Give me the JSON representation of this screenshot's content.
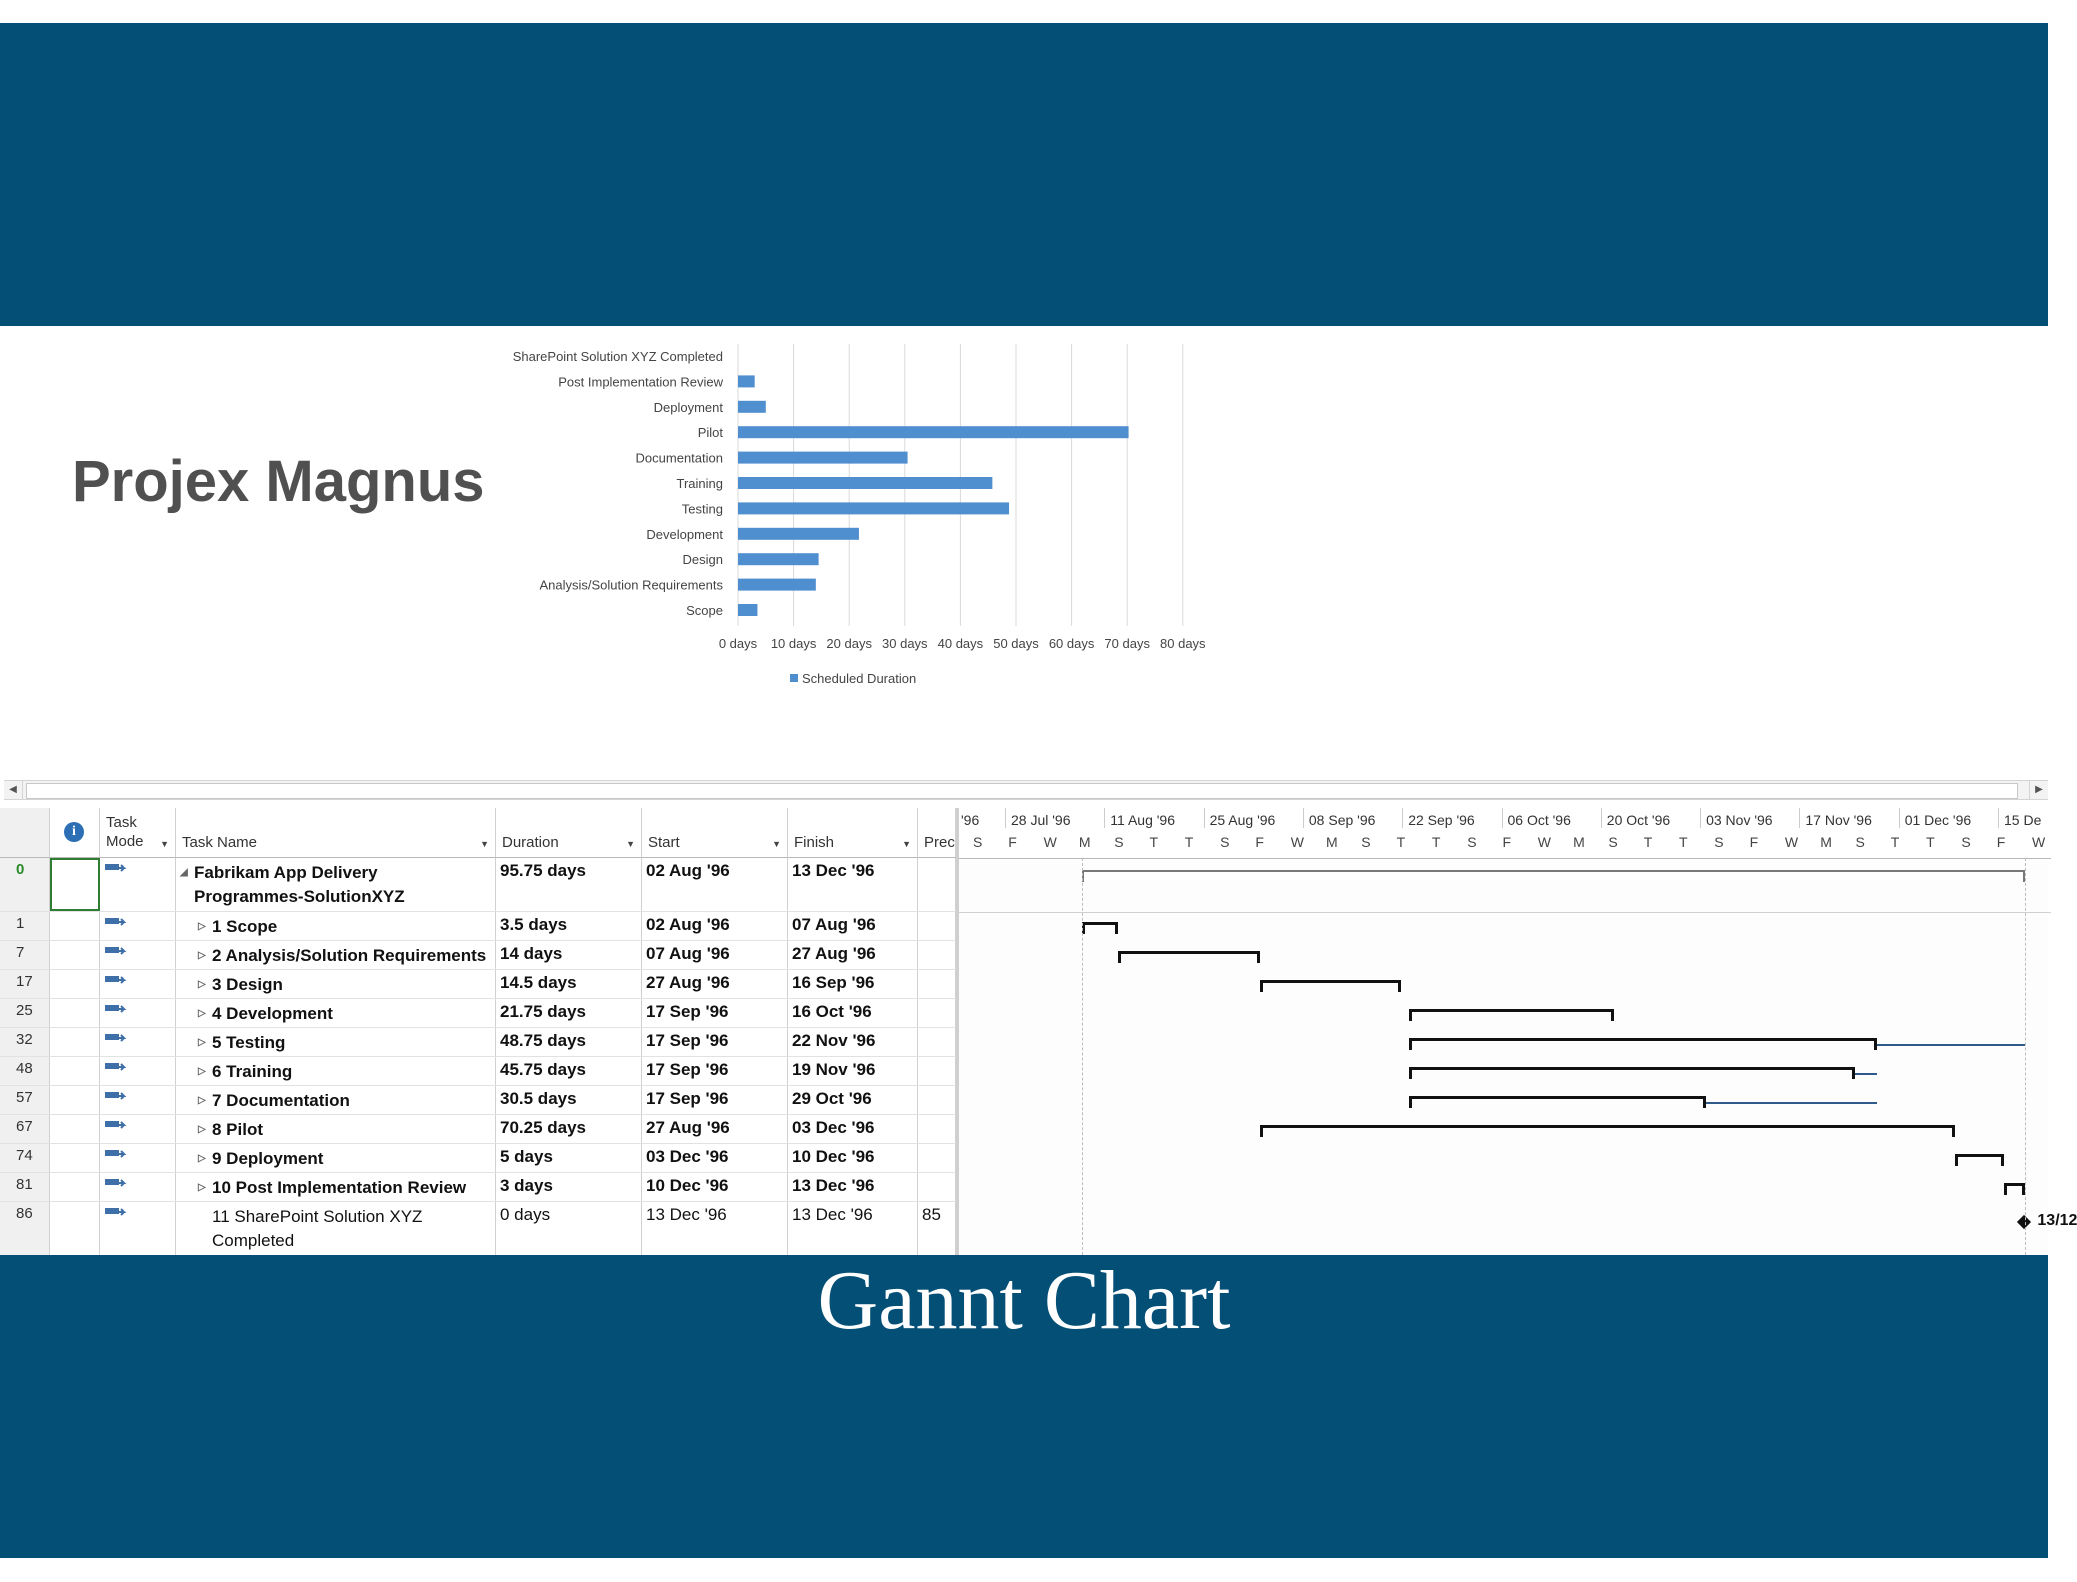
{
  "slide": {
    "title": "Projex Magnus",
    "caption": "Gannt Chart"
  },
  "chart_data": {
    "type": "bar",
    "orientation": "horizontal",
    "categories": [
      "SharePoint Solution XYZ Completed",
      "Post Implementation Review",
      "Deployment",
      "Pilot",
      "Documentation",
      "Training",
      "Testing",
      "Development",
      "Design",
      "Analysis/Solution Requirements",
      "Scope"
    ],
    "series": [
      {
        "name": "Scheduled Duration",
        "values": [
          0,
          3,
          5,
          70.25,
          30.5,
          45.75,
          48.75,
          21.75,
          14.5,
          14,
          3.5
        ]
      }
    ],
    "x_ticks": [
      "0 days",
      "10 days",
      "20 days",
      "30 days",
      "40 days",
      "50 days",
      "60 days",
      "70 days",
      "80 days"
    ],
    "xlim": [
      0,
      80
    ],
    "grid": true,
    "legend_position": "bottom",
    "bar_color": "#4f8fd0"
  },
  "project": {
    "columns": {
      "task_mode": "Task Mode",
      "task_name": "Task Name",
      "duration": "Duration",
      "start": "Start",
      "finish": "Finish",
      "pred": "Prec"
    },
    "rows": [
      {
        "id": "0",
        "name_line1": "Fabrikam App Delivery",
        "name_line2": "Programmes-SolutionXYZ",
        "duration": "95.75 days",
        "start": "02 Aug '96",
        "finish": "13 Dec '96",
        "pred": ""
      },
      {
        "id": "1",
        "name": "1 Scope",
        "duration": "3.5 days",
        "start": "02 Aug '96",
        "finish": "07 Aug '96",
        "pred": ""
      },
      {
        "id": "7",
        "name": "2 Analysis/Solution Requirements",
        "duration": "14 days",
        "start": "07 Aug '96",
        "finish": "27 Aug '96",
        "pred": ""
      },
      {
        "id": "17",
        "name": "3 Design",
        "duration": "14.5 days",
        "start": "27 Aug '96",
        "finish": "16 Sep '96",
        "pred": ""
      },
      {
        "id": "25",
        "name": "4 Development",
        "duration": "21.75 days",
        "start": "17 Sep '96",
        "finish": "16 Oct '96",
        "pred": ""
      },
      {
        "id": "32",
        "name": "5 Testing",
        "duration": "48.75 days",
        "start": "17 Sep '96",
        "finish": "22 Nov '96",
        "pred": ""
      },
      {
        "id": "48",
        "name": "6 Training",
        "duration": "45.75 days",
        "start": "17 Sep '96",
        "finish": "19 Nov '96",
        "pred": ""
      },
      {
        "id": "57",
        "name": "7 Documentation",
        "duration": "30.5 days",
        "start": "17 Sep '96",
        "finish": "29 Oct '96",
        "pred": ""
      },
      {
        "id": "67",
        "name": "8 Pilot",
        "duration": "70.25 days",
        "start": "27 Aug '96",
        "finish": "03 Dec '96",
        "pred": ""
      },
      {
        "id": "74",
        "name": "9 Deployment",
        "duration": "5 days",
        "start": "03 Dec '96",
        "finish": "10 Dec '96",
        "pred": ""
      },
      {
        "id": "81",
        "name": "10 Post Implementation Review",
        "duration": "3 days",
        "start": "10 Dec '96",
        "finish": "13 Dec '96",
        "pred": ""
      },
      {
        "id": "86",
        "name_line1": "11 SharePoint Solution XYZ",
        "name_line2": "Completed",
        "duration": "0 days",
        "start": "13 Dec '96",
        "finish": "13 Dec '96",
        "pred": "85"
      }
    ],
    "timescale": {
      "weeks": [
        "'96",
        "28 Jul '96",
        "11 Aug '96",
        "25 Aug '96",
        "08 Sep '96",
        "22 Sep '96",
        "06 Oct '96",
        "20 Oct '96",
        "03 Nov '96",
        "17 Nov '96",
        "01 Dec '96",
        "15 De"
      ],
      "days": [
        "S",
        "F",
        "W",
        "M",
        "S",
        "T",
        "T",
        "S",
        "F",
        "W",
        "M",
        "S",
        "T",
        "T",
        "S",
        "F",
        "W",
        "M",
        "S",
        "T",
        "T",
        "S",
        "F",
        "W",
        "M",
        "S",
        "T",
        "T",
        "S",
        "F",
        "W"
      ]
    },
    "milestone_label": "13/12"
  }
}
